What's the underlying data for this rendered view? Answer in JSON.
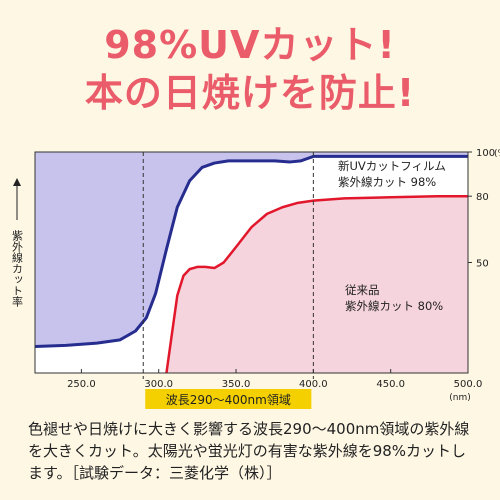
{
  "headline": {
    "line1": "98%UVカット!",
    "line2": "本の日焼けを防止!"
  },
  "caption": "色褪せや日焼けに大きく影響する波長290〜400nm領域の紫外線を大きくカット。太陽光や蛍光灯の有害な紫外線を98%カットします。［試験データ：三菱化学（株）］",
  "colors": {
    "headline": "#ea5c6a",
    "new_film_line": "#262d8f",
    "new_film_fill": "#c7c3ec",
    "conventional_line": "#e2172b",
    "conventional_fill": "#f6d4dd",
    "band_label_bg": "#f4d000"
  },
  "chart_data": {
    "type": "line",
    "title": "",
    "ylabel": "紫外線カット率",
    "xlabel_band": "波長290〜400nm領域",
    "x_unit": "(nm)",
    "y_unit": "(%)",
    "xlim": [
      220,
      500
    ],
    "ylim": [
      0,
      100
    ],
    "x_ticks": [
      "250.0",
      "300.0",
      "350.0",
      "400.0",
      "450.0",
      "500.0"
    ],
    "x_tick_values": [
      250,
      300,
      350,
      400,
      450,
      500
    ],
    "y_ticks": [
      "100",
      "80",
      "50"
    ],
    "y_tick_values": [
      100,
      80,
      50
    ],
    "band": [
      290,
      400
    ],
    "series": [
      {
        "name": "新UVカットフィルム 紫外線カット 98%",
        "label_line1": "新UVカットフィルム",
        "label_line2": "紫外線カット 98%",
        "x": [
          220,
          240,
          260,
          275,
          285,
          292,
          298,
          305,
          312,
          320,
          328,
          336,
          345,
          355,
          365,
          375,
          385,
          392,
          396,
          400,
          420,
          450,
          480,
          500
        ],
        "y": [
          12,
          12.5,
          13.5,
          15,
          19,
          25,
          36,
          56,
          75,
          87,
          93,
          95,
          96,
          96,
          96,
          96,
          95.5,
          96,
          97,
          98,
          98,
          98,
          98,
          98
        ]
      },
      {
        "name": "従来品 紫外線カット 80%",
        "label_line1": "従来品",
        "label_line2": "紫外線カット 80%",
        "x": [
          305,
          308,
          312,
          316,
          320,
          325,
          330,
          336,
          342,
          350,
          360,
          370,
          380,
          390,
          400,
          420,
          450,
          480,
          500
        ],
        "y": [
          0,
          15,
          35,
          44,
          47,
          48,
          48,
          47.5,
          50,
          57,
          66,
          72,
          75,
          77,
          78,
          79,
          79.5,
          80,
          80
        ]
      }
    ]
  }
}
